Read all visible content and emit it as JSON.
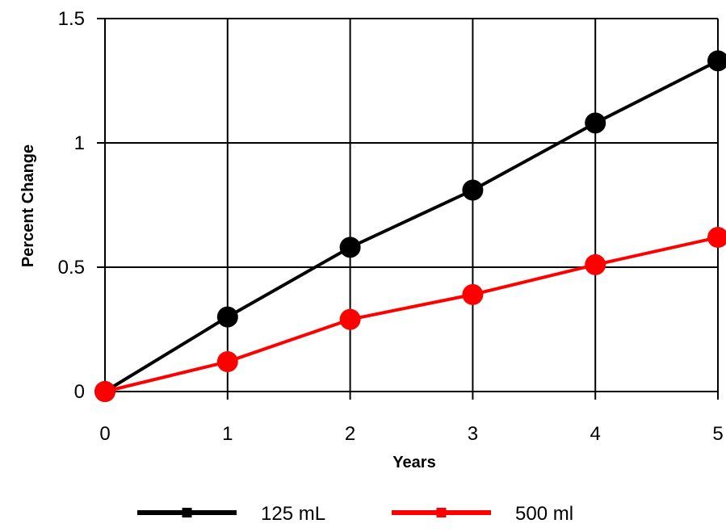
{
  "chart_data": {
    "type": "line",
    "title": "",
    "xlabel": "Years",
    "ylabel": "Percent Change",
    "x": [
      0,
      1,
      2,
      3,
      4,
      5
    ],
    "xlim": [
      0,
      5
    ],
    "ylim": [
      0,
      1.5
    ],
    "x_ticks": [
      "0",
      "1",
      "2",
      "3",
      "4",
      "5"
    ],
    "y_ticks": [
      "0",
      "0.5",
      "1",
      "1.5"
    ],
    "grid": true,
    "legend_position": "bottom",
    "series": [
      {
        "name": "125 mL",
        "color": "#000000",
        "values": [
          0,
          0.3,
          0.58,
          0.81,
          1.08,
          1.33
        ]
      },
      {
        "name": "500 ml",
        "color": "#ff0000",
        "values": [
          0,
          0.12,
          0.29,
          0.39,
          0.51,
          0.62
        ]
      }
    ]
  }
}
